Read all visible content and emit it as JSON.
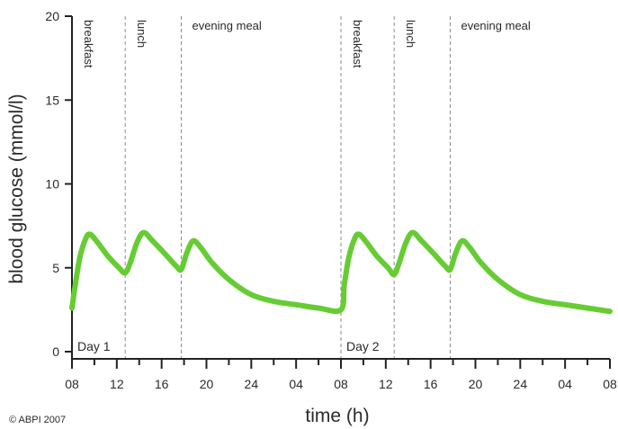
{
  "copyright": "© ABPI 2007",
  "chart_data": {
    "type": "line",
    "title": "",
    "xlabel": "time (h)",
    "ylabel": "blood glucose (mmol/l)",
    "ylim": [
      0,
      20
    ],
    "yticks": [
      0,
      5,
      10,
      15,
      20
    ],
    "xlim_hours": [
      0,
      48
    ],
    "x_tick_labels": [
      "08",
      "12",
      "16",
      "20",
      "24",
      "04",
      "08",
      "12",
      "16",
      "20",
      "24",
      "04",
      "08"
    ],
    "grid": false,
    "line_color": "#66cc33",
    "meal_line_color": "#8a8a8a",
    "meals": [
      {
        "label": "breakfast",
        "hours": 0,
        "vertical": true
      },
      {
        "label": "lunch",
        "hours": 4.75,
        "vertical": true
      },
      {
        "label": "evening meal",
        "hours": 9.75,
        "vertical": false
      },
      {
        "label": "breakfast",
        "hours": 24,
        "vertical": true
      },
      {
        "label": "lunch",
        "hours": 28.75,
        "vertical": true
      },
      {
        "label": "evening meal",
        "hours": 33.75,
        "vertical": false
      }
    ],
    "days": [
      {
        "label": "Day 1",
        "hours": 0
      },
      {
        "label": "Day 2",
        "hours": 24
      }
    ],
    "series": [
      {
        "x_hours": [
          0,
          0.3,
          0.7,
          1.2,
          1.6,
          2.3,
          3.2,
          4.2,
          4.75,
          5.2,
          5.8,
          6.4,
          7.2,
          8.2,
          9.3,
          9.75,
          10.2,
          10.8,
          11.5,
          12.5,
          14,
          16,
          18,
          20,
          22,
          24,
          24.3,
          24.7,
          25.2,
          25.6,
          26.3,
          27.2,
          28.2,
          28.75,
          29.2,
          29.8,
          30.4,
          31.2,
          32.2,
          33.3,
          33.75,
          34.2,
          34.8,
          35.5,
          36.5,
          38,
          40,
          42,
          44,
          46,
          48
        ],
        "values": [
          2.6,
          4.0,
          5.6,
          6.7,
          7.0,
          6.5,
          5.7,
          5.0,
          4.7,
          5.3,
          6.5,
          7.1,
          6.6,
          5.9,
          5.1,
          4.9,
          5.8,
          6.6,
          6.2,
          5.3,
          4.3,
          3.4,
          3.0,
          2.8,
          2.6,
          2.5,
          4.0,
          5.6,
          6.7,
          7.0,
          6.5,
          5.7,
          5.0,
          4.6,
          5.3,
          6.5,
          7.1,
          6.6,
          5.9,
          5.1,
          4.9,
          5.8,
          6.6,
          6.2,
          5.3,
          4.3,
          3.4,
          3.0,
          2.8,
          2.6,
          2.4
        ]
      }
    ]
  }
}
